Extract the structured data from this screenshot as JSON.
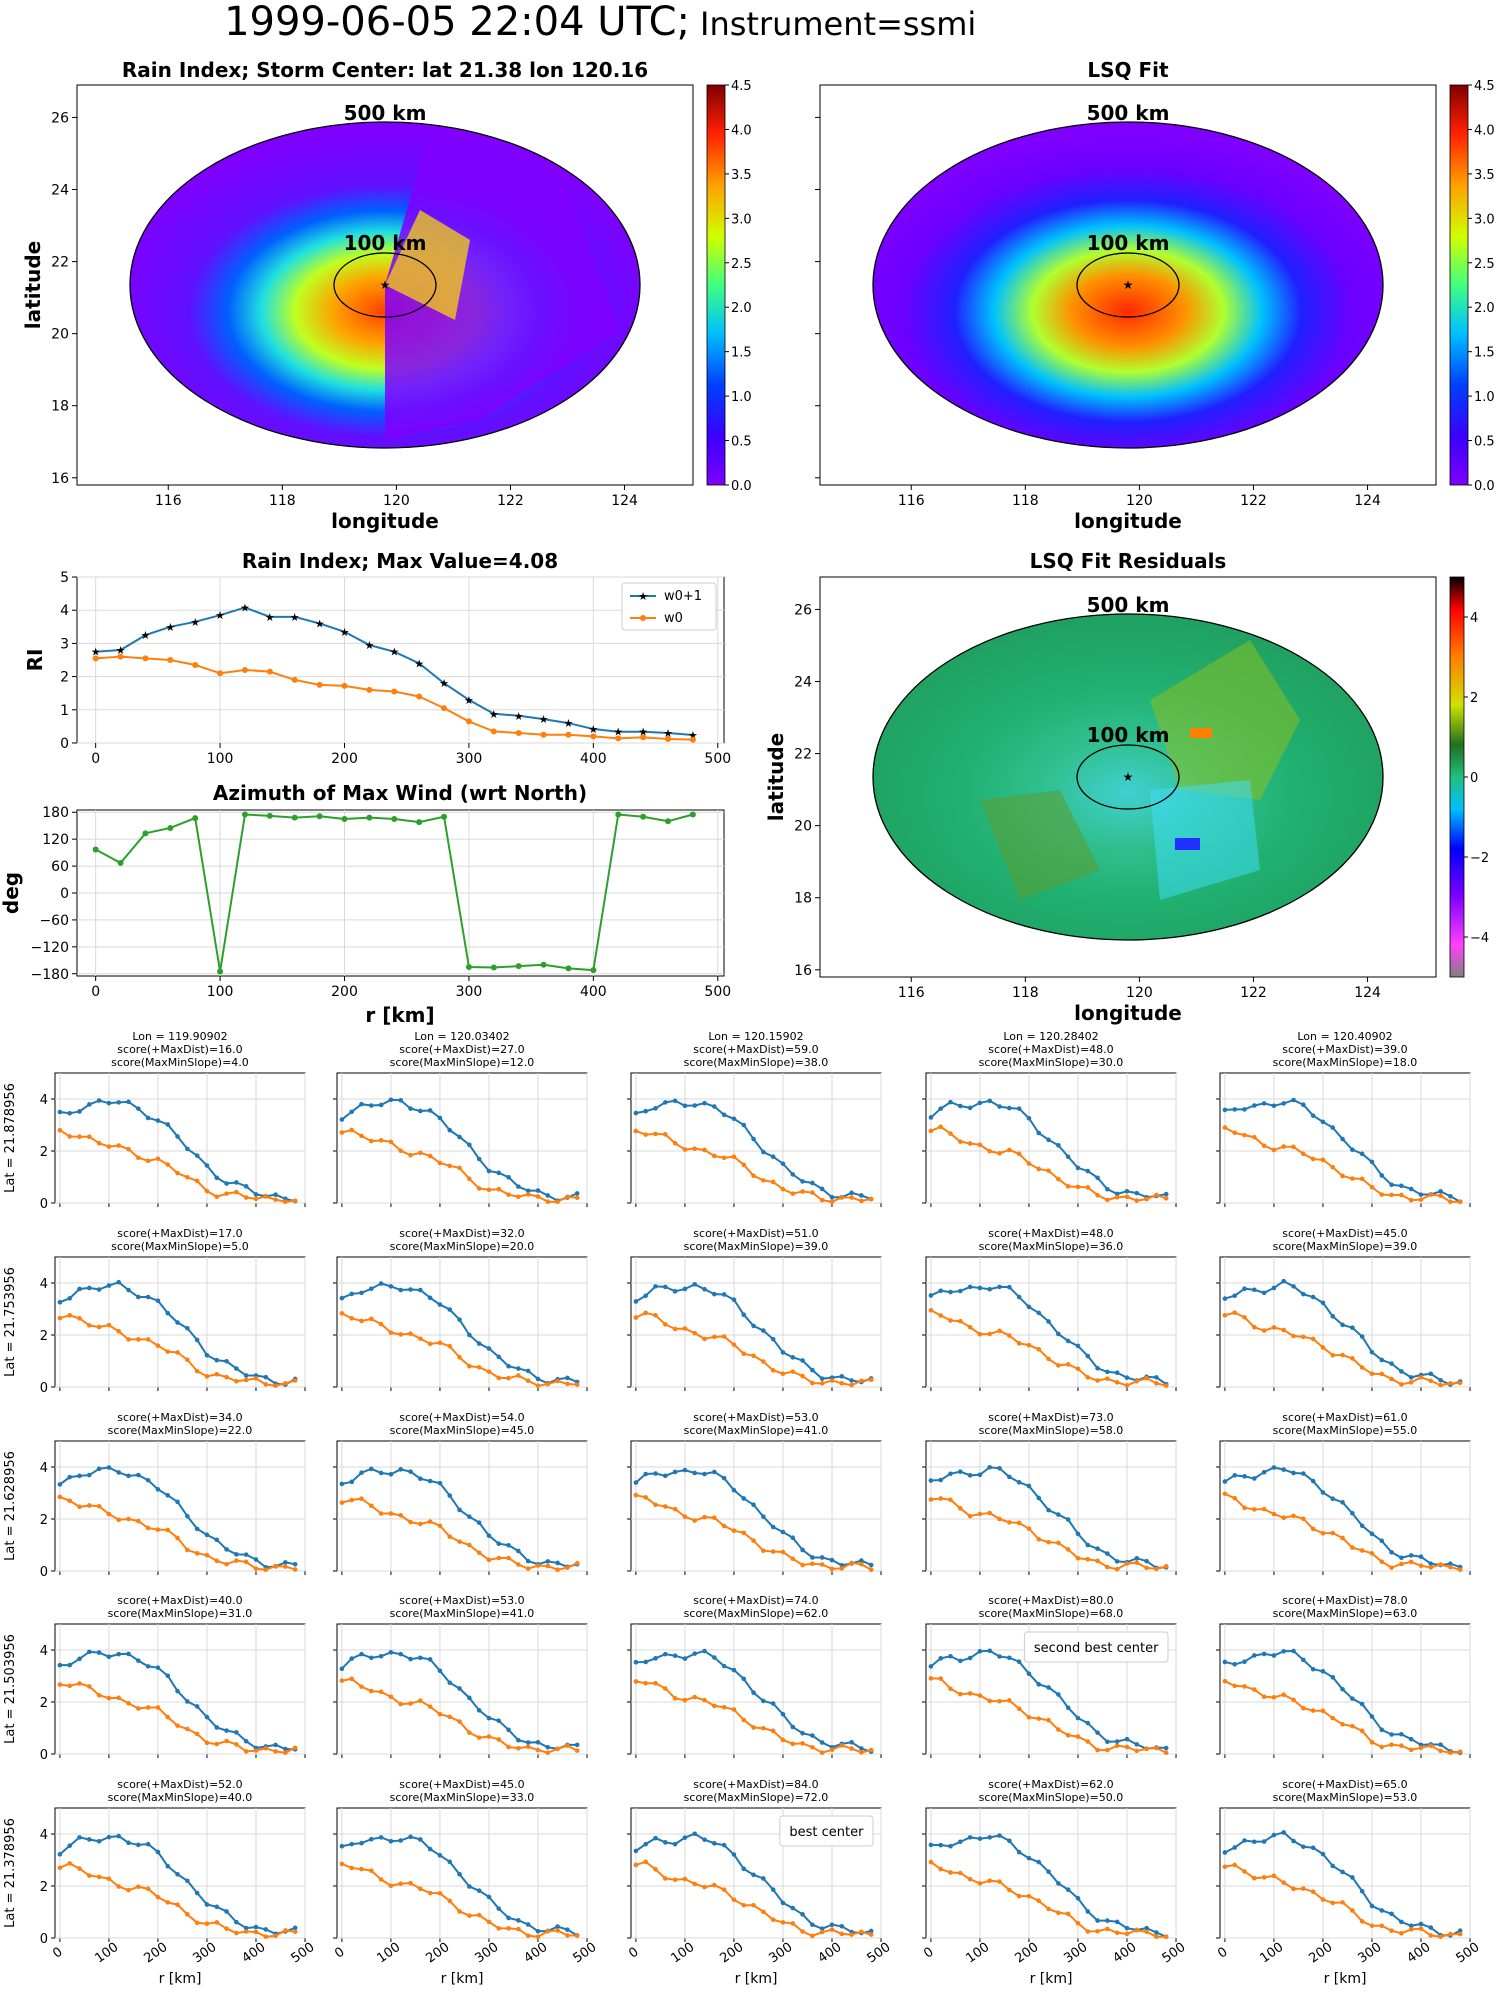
{
  "figure": {
    "title_main": "1999-06-05 22:04 UTC;",
    "title_instrument": "Instrument=ssmi"
  },
  "colors": {
    "w0p1": "#1f77b4",
    "w0": "#ff7f0e",
    "azimuth": "#2ca02c",
    "grid": "#d9d9d9",
    "highlight_second": "#ff0000",
    "highlight_best": "#800080"
  },
  "maps": {
    "rain_index": {
      "title": "Rain Index; Storm Center: lat 21.38 lon 120.16",
      "xlabel": "longitude",
      "ylabel": "latitude",
      "ring_outer": "500 km",
      "ring_inner": "100 km",
      "colorbar_ticks": [
        "0.0",
        "0.5",
        "1.0",
        "1.5",
        "2.0",
        "2.5",
        "3.0",
        "3.5",
        "4.0",
        "4.5"
      ],
      "xticks": [
        "116",
        "118",
        "120",
        "122",
        "124"
      ],
      "yticks": [
        "16",
        "18",
        "20",
        "22",
        "24",
        "26"
      ]
    },
    "lsq_fit": {
      "title": "LSQ Fit",
      "xlabel": "longitude",
      "ring_outer": "500 km",
      "ring_inner": "100 km",
      "colorbar_ticks": [
        "0.0",
        "0.5",
        "1.0",
        "1.5",
        "2.0",
        "2.5",
        "3.0",
        "3.5",
        "4.0",
        "4.5"
      ],
      "xticks": [
        "116",
        "118",
        "120",
        "122",
        "124"
      ]
    },
    "residuals": {
      "title": "LSQ Fit Residuals",
      "xlabel": "longitude",
      "ylabel": "latitude",
      "ring_outer": "500 km",
      "ring_inner": "100 km",
      "colorbar_ticks": [
        "−4",
        "−2",
        "0",
        "2",
        "4"
      ],
      "xticks": [
        "116",
        "118",
        "120",
        "122",
        "124"
      ],
      "yticks": [
        "16",
        "18",
        "20",
        "22",
        "24",
        "26"
      ]
    }
  },
  "chart_data": [
    {
      "type": "line",
      "title": "Rain Index; Max Value=4.08",
      "ylabel": "RI",
      "xlim": [
        -15,
        505
      ],
      "ylim": [
        0,
        5
      ],
      "xticks": [
        "0",
        "100",
        "200",
        "300",
        "400",
        "500"
      ],
      "yticks": [
        "0",
        "1",
        "2",
        "3",
        "4",
        "5"
      ],
      "legend": "top-right",
      "x": [
        0,
        20,
        40,
        60,
        80,
        100,
        120,
        140,
        160,
        180,
        200,
        220,
        240,
        260,
        280,
        300,
        320,
        340,
        360,
        380,
        400,
        420,
        440,
        460,
        480
      ],
      "series": [
        {
          "name": "w0+1",
          "values": [
            2.75,
            2.8,
            3.25,
            3.5,
            3.65,
            3.85,
            4.08,
            3.8,
            3.8,
            3.6,
            3.35,
            2.95,
            2.75,
            2.4,
            1.8,
            1.3,
            0.88,
            0.82,
            0.72,
            0.6,
            0.42,
            0.34,
            0.34,
            0.3,
            0.24
          ]
        },
        {
          "name": "w0",
          "values": [
            2.55,
            2.6,
            2.55,
            2.5,
            2.35,
            2.1,
            2.2,
            2.15,
            1.9,
            1.75,
            1.72,
            1.6,
            1.55,
            1.4,
            1.05,
            0.65,
            0.35,
            0.3,
            0.25,
            0.25,
            0.2,
            0.14,
            0.17,
            0.12,
            0.1
          ]
        }
      ]
    },
    {
      "type": "line",
      "title": "Azimuth of Max Wind (wrt North)",
      "xlabel": "r [km]",
      "ylabel": "deg",
      "xlim": [
        -15,
        505
      ],
      "ylim": [
        -185,
        185
      ],
      "xticks": [
        "0",
        "100",
        "200",
        "300",
        "400",
        "500"
      ],
      "yticks": [
        "180",
        "120",
        "60",
        "0",
        "−60",
        "−120",
        "−180"
      ],
      "x": [
        0,
        20,
        40,
        60,
        80,
        100,
        120,
        140,
        160,
        180,
        200,
        220,
        240,
        260,
        280,
        300,
        320,
        340,
        360,
        380,
        400,
        420,
        440,
        460,
        480
      ],
      "series": [
        {
          "values": [
            97,
            67,
            133,
            145,
            167,
            -175,
            175,
            172,
            168,
            171,
            165,
            168,
            165,
            158,
            170,
            -165,
            -166,
            -163,
            -160,
            -168,
            -172,
            175,
            170,
            160,
            175
          ]
        }
      ]
    },
    {
      "type": "line",
      "panels": "5x5 grid of rain-index radial profiles",
      "xlabel": "r [km]",
      "xticks": [
        "0",
        "100",
        "200",
        "300",
        "400",
        "500"
      ],
      "yticks": [
        "0",
        "2",
        "4"
      ],
      "xlim": [
        -10,
        500
      ],
      "ylim": [
        0,
        5
      ],
      "row_labels": [
        "Lat = 21.878956",
        "Lat = 21.753956",
        "Lat = 21.628956",
        "Lat = 21.503956",
        "Lat = 21.378956"
      ],
      "col_labels": [
        "Lon = 119.90902",
        "Lon = 120.03402",
        "Lon = 120.15902",
        "Lon = 120.28402",
        "Lon = 120.40902"
      ],
      "scores": [
        [
          [
            "score(+MaxDist)=16.0",
            "score(MaxMinSlope)=4.0"
          ],
          [
            "score(+MaxDist)=27.0",
            "score(MaxMinSlope)=12.0"
          ],
          [
            "score(+MaxDist)=59.0",
            "score(MaxMinSlope)=38.0"
          ],
          [
            "score(+MaxDist)=48.0",
            "score(MaxMinSlope)=30.0"
          ],
          [
            "score(+MaxDist)=39.0",
            "score(MaxMinSlope)=18.0"
          ]
        ],
        [
          [
            "score(+MaxDist)=17.0",
            "score(MaxMinSlope)=5.0"
          ],
          [
            "score(+MaxDist)=32.0",
            "score(MaxMinSlope)=20.0"
          ],
          [
            "score(+MaxDist)=51.0",
            "score(MaxMinSlope)=39.0"
          ],
          [
            "score(+MaxDist)=48.0",
            "score(MaxMinSlope)=36.0"
          ],
          [
            "score(+MaxDist)=45.0",
            "score(MaxMinSlope)=39.0"
          ]
        ],
        [
          [
            "score(+MaxDist)=34.0",
            "score(MaxMinSlope)=22.0"
          ],
          [
            "score(+MaxDist)=54.0",
            "score(MaxMinSlope)=45.0"
          ],
          [
            "score(+MaxDist)=53.0",
            "score(MaxMinSlope)=41.0"
          ],
          [
            "score(+MaxDist)=73.0",
            "score(MaxMinSlope)=58.0"
          ],
          [
            "score(+MaxDist)=61.0",
            "score(MaxMinSlope)=55.0"
          ]
        ],
        [
          [
            "score(+MaxDist)=40.0",
            "score(MaxMinSlope)=31.0"
          ],
          [
            "score(+MaxDist)=53.0",
            "score(MaxMinSlope)=41.0"
          ],
          [
            "score(+MaxDist)=74.0",
            "score(MaxMinSlope)=62.0"
          ],
          [
            "score(+MaxDist)=80.0",
            "score(MaxMinSlope)=68.0"
          ],
          [
            "score(+MaxDist)=78.0",
            "score(MaxMinSlope)=63.0"
          ]
        ],
        [
          [
            "score(+MaxDist)=52.0",
            "score(MaxMinSlope)=40.0"
          ],
          [
            "score(+MaxDist)=45.0",
            "score(MaxMinSlope)=33.0"
          ],
          [
            "score(+MaxDist)=84.0",
            "score(MaxMinSlope)=72.0"
          ],
          [
            "score(+MaxDist)=62.0",
            "score(MaxMinSlope)=50.0"
          ],
          [
            "score(+MaxDist)=65.0",
            "score(MaxMinSlope)=53.0"
          ]
        ]
      ],
      "annotations": [
        {
          "row": 3,
          "col": 3,
          "text": "second best center",
          "color": "#ff0000"
        },
        {
          "row": 4,
          "col": 2,
          "text": "best center",
          "color": "#800080"
        }
      ],
      "x": [
        0,
        20,
        40,
        60,
        80,
        100,
        120,
        140,
        160,
        180,
        200,
        220,
        240,
        260,
        280,
        300,
        320,
        340,
        360,
        380,
        400,
        420,
        440,
        460,
        480
      ],
      "profiles": {
        "w0p1_base": [
          3.4,
          3.55,
          3.7,
          3.75,
          3.8,
          3.85,
          3.9,
          3.8,
          3.65,
          3.45,
          3.2,
          2.85,
          2.5,
          2.15,
          1.8,
          1.4,
          1.1,
          0.85,
          0.65,
          0.5,
          0.4,
          0.32,
          0.27,
          0.22,
          0.2
        ],
        "w0_base": [
          2.8,
          2.75,
          2.6,
          2.45,
          2.3,
          2.2,
          2.1,
          2.0,
          1.9,
          1.75,
          1.6,
          1.4,
          1.2,
          0.95,
          0.75,
          0.55,
          0.42,
          0.32,
          0.27,
          0.22,
          0.2,
          0.17,
          0.15,
          0.13,
          0.12
        ]
      }
    }
  ]
}
